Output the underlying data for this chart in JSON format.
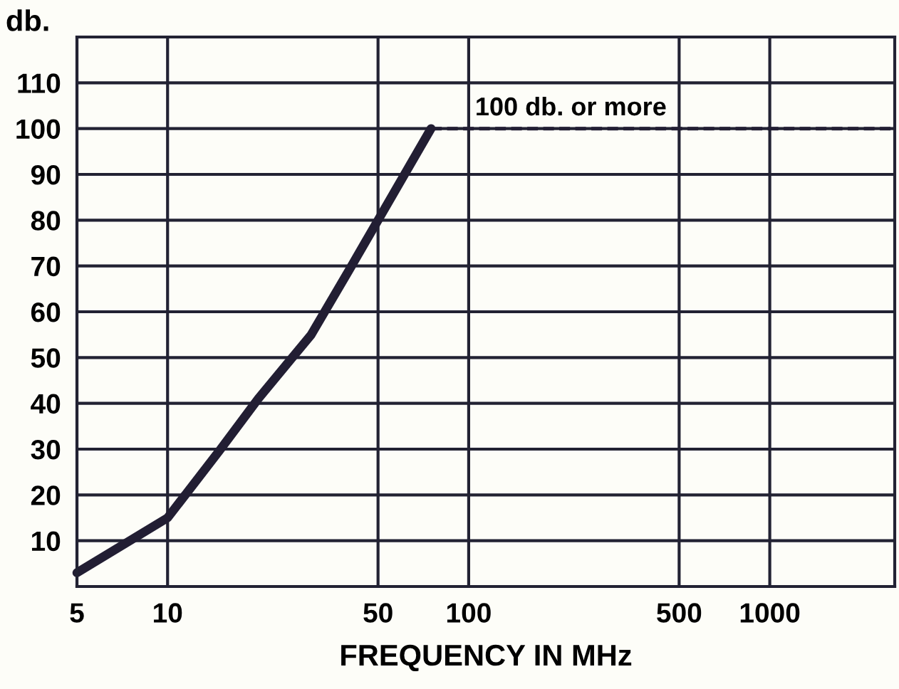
{
  "chart_data": {
    "type": "line",
    "xlabel": "FREQUENCY IN MHz",
    "ylabel": "db.",
    "log": "x",
    "xlim": [
      5,
      2600
    ],
    "xticks": [
      5,
      10,
      50,
      100,
      500,
      1000
    ],
    "ylim": [
      0,
      120
    ],
    "yticks": [
      10,
      20,
      30,
      40,
      50,
      60,
      70,
      80,
      90,
      100,
      110
    ],
    "grid": true,
    "marker": "none",
    "series": [
      {
        "color": "#221e33",
        "line_style": "solid",
        "x": [
          5,
          10,
          15,
          20,
          30,
          40,
          50,
          75
        ],
        "values": [
          3,
          15,
          30,
          41,
          55,
          69,
          80,
          100
        ]
      },
      {
        "color": "#221e33",
        "line_style": "dashed",
        "x": [
          75,
          2600
        ],
        "values": [
          100,
          100
        ]
      }
    ],
    "annotations": [
      {
        "text": "100 db. or more",
        "x": 105,
        "y": 100
      }
    ]
  }
}
